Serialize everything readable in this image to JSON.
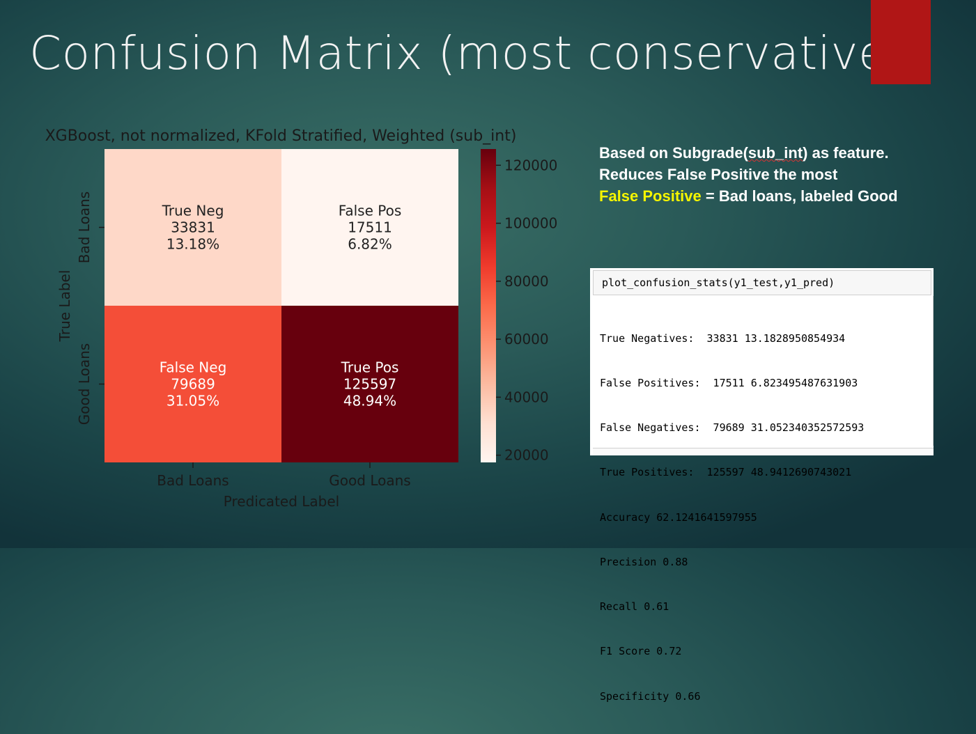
{
  "slide": {
    "title": "Confusion Matrix (most conservative)",
    "notes": {
      "line1_prefix": "Based on Subgrade(",
      "line1_squiggle": "sub_int",
      "line1_suffix": ") as feature.",
      "line2": "Reduces False Positive the most",
      "line3_highlight": "False Positive",
      "line3_rest": " = Bad loans, labeled Good"
    },
    "accent_color": "#b01616"
  },
  "code": {
    "input": "plot_confusion_stats(y1_test,y1_pred)",
    "output": [
      "True Negatives:  33831 13.1828950854934",
      "False Positives:  17511 6.823495487631903",
      "False Negatives:  79689 31.052340352572593",
      "True Positives:  125597 48.9412690743021",
      "Accuracy 62.1241641597955",
      "Precision 0.88",
      "Recall 0.61",
      "F1 Score 0.72",
      "Specificity 0.66"
    ]
  },
  "chart_data": {
    "type": "heatmap",
    "title": "XGBoost, not normalized, KFold Stratified, Weighted (sub_int)",
    "xlabel": "Predicated Label",
    "ylabel": "True Label",
    "x_categories": [
      "Bad Loans",
      "Good Loans"
    ],
    "y_categories": [
      "Bad Loans",
      "Good Loans"
    ],
    "cells": [
      [
        {
          "name": "True Neg",
          "count": "33831",
          "percent": "13.18%",
          "value": 33831
        },
        {
          "name": "False Pos",
          "count": "17511",
          "percent": "6.82%",
          "value": 17511
        }
      ],
      [
        {
          "name": "False Neg",
          "count": "79689",
          "percent": "31.05%",
          "value": 79689
        },
        {
          "name": "True Pos",
          "count": "125597",
          "percent": "48.94%",
          "value": 125597
        }
      ]
    ],
    "colorbar": {
      "colormap": "Reds",
      "min": 17511,
      "max": 125597,
      "ticks": [
        20000,
        40000,
        60000,
        80000,
        100000,
        120000
      ],
      "tick_labels": [
        "20000",
        "40000",
        "60000",
        "80000",
        "100000",
        "120000"
      ]
    }
  }
}
